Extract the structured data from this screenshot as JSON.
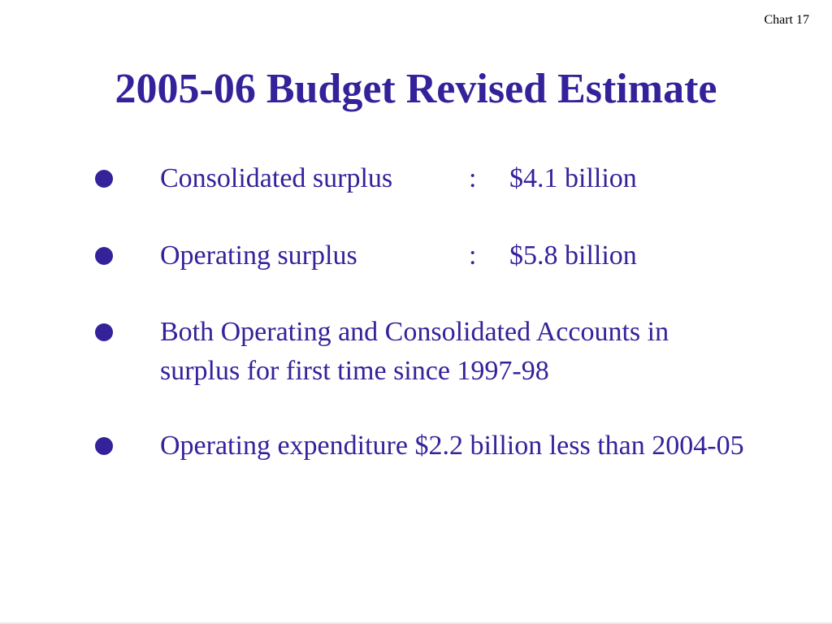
{
  "slide": {
    "tag": "Chart 17",
    "title": "2005-06 Budget Revised Estimate"
  },
  "bullets": [
    {
      "label": "Consolidated surplus",
      "separator": ":",
      "value": "$4.1 billion"
    },
    {
      "label": "Operating surplus",
      "separator": ":",
      "value": "$5.8 billion"
    },
    {
      "text": "Both Operating and Consolidated Accounts in surplus for first time since 1997-98"
    },
    {
      "text": "Operating expenditure $2.2 billion less than 2004-05"
    }
  ],
  "colors": {
    "text": "#33229a",
    "tag": "#000000",
    "background": "#ffffff"
  }
}
